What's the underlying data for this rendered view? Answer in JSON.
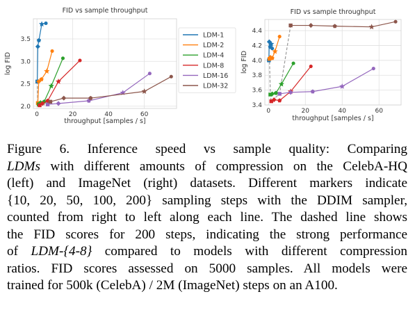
{
  "chart_data": [
    {
      "type": "line",
      "title": "FID vs sample throughput",
      "xlabel": "throughput [samples / s]",
      "ylabel": "log FID",
      "xlim": [
        -2,
        78
      ],
      "ylim": [
        1.95,
        3.95
      ],
      "xticks": [
        0,
        20,
        40,
        60
      ],
      "yticks": [
        2.0,
        2.5,
        3.0,
        3.5
      ],
      "ytick_labels": [
        "2.0",
        "2.5",
        "3.0",
        "3.5"
      ],
      "grid": true,
      "legend": "right",
      "series": [
        {
          "name": "LDM-1",
          "color": "#1f77b4",
          "x": [
            0.2,
            0.5,
            1.1,
            2.7,
            5.0
          ],
          "y": [
            2.55,
            3.33,
            3.47,
            3.83,
            3.85
          ]
        },
        {
          "name": "LDM-2",
          "color": "#ff7f0e",
          "x": [
            0.5,
            1.0,
            2.5,
            5.5,
            8.5
          ],
          "y": [
            2.07,
            2.55,
            2.6,
            2.78,
            3.23
          ]
        },
        {
          "name": "LDM-4",
          "color": "#2ca02c",
          "x": [
            1.0,
            2.0,
            4.0,
            8.0,
            14.5
          ],
          "y": [
            2.04,
            2.08,
            2.1,
            2.45,
            3.07
          ]
        },
        {
          "name": "LDM-8",
          "color": "#d62728",
          "x": [
            1.5,
            3.0,
            6.0,
            12.0,
            24.0
          ],
          "y": [
            2.02,
            2.06,
            2.12,
            2.55,
            3.02
          ]
        },
        {
          "name": "LDM-16",
          "color": "#9467bd",
          "x": [
            6.0,
            12.0,
            29.0,
            48.0,
            63.0
          ],
          "y": [
            2.04,
            2.06,
            2.12,
            2.3,
            2.73
          ]
        },
        {
          "name": "LDM-32",
          "color": "#8c564b",
          "x": [
            7.5,
            15.0,
            30.0,
            60.0,
            75.0
          ],
          "y": [
            2.1,
            2.18,
            2.18,
            2.33,
            2.66
          ]
        }
      ],
      "dashed_line": {
        "x": [
          0.2,
          0.5,
          1.0,
          1.5,
          6.0,
          7.5
        ],
        "y": [
          2.55,
          2.07,
          2.04,
          2.02,
          2.04,
          2.1
        ]
      }
    },
    {
      "type": "line",
      "title": "FID vs sample throughput",
      "xlabel": "throughput [samples / s]",
      "ylabel": "log FID",
      "xlim": [
        -2,
        72
      ],
      "ylim": [
        3.4,
        4.55
      ],
      "xticks": [
        0,
        20,
        40,
        60
      ],
      "yticks": [
        3.4,
        3.6,
        3.8,
        4.0,
        4.2,
        4.4
      ],
      "ytick_labels": [
        "3.4",
        "3.6",
        "3.8",
        "4.0",
        "4.2",
        "4.4"
      ],
      "grid": true,
      "series": [
        {
          "name": "LDM-1",
          "color": "#1f77b4",
          "x": [
            0.2,
            0.4,
            0.9,
            1.5,
            2.0
          ],
          "y": [
            4.0,
            4.25,
            4.18,
            4.22,
            4.16
          ]
        },
        {
          "name": "LDM-2",
          "color": "#ff7f0e",
          "x": [
            0.5,
            1.0,
            2.0,
            3.5,
            6.0
          ],
          "y": [
            4.02,
            4.04,
            4.03,
            4.12,
            4.32
          ]
        },
        {
          "name": "LDM-4",
          "color": "#2ca02c",
          "x": [
            1.0,
            2.0,
            4.0,
            7.0,
            13.5
          ],
          "y": [
            3.54,
            3.55,
            3.56,
            3.68,
            3.96
          ]
        },
        {
          "name": "LDM-8",
          "color": "#d62728",
          "x": [
            1.5,
            3.0,
            6.0,
            12.0,
            23.0
          ],
          "y": [
            3.45,
            3.47,
            3.46,
            3.58,
            3.92
          ]
        },
        {
          "name": "LDM-16",
          "color": "#9467bd",
          "x": [
            6.0,
            12.0,
            24.0,
            40.0,
            57.0
          ],
          "y": [
            3.55,
            3.57,
            3.58,
            3.65,
            3.89
          ]
        },
        {
          "name": "LDM-32",
          "color": "#8c564b",
          "x": [
            12.0,
            23.0,
            36.0,
            56.0,
            69.0
          ],
          "y": [
            4.47,
            4.47,
            4.46,
            4.45,
            4.52
          ]
        }
      ],
      "dashed_line": {
        "x": [
          0.2,
          0.5,
          1.0,
          1.5,
          6.0,
          12.0
        ],
        "y": [
          4.0,
          4.02,
          3.54,
          3.45,
          3.55,
          4.47
        ]
      }
    }
  ],
  "caption": {
    "lines": [
      [
        {
          "t": "Figure 6.    Inference speed vs sample quality: Comparing",
          "i": false
        }
      ],
      [
        {
          "t": "LDMs",
          "i": true
        },
        {
          "t": " with different amounts of compression on the CelebA-HQ",
          "i": false
        }
      ],
      [
        {
          "t": "(left) and ImageNet (right) datasets.  Different markers indicate",
          "i": false
        }
      ],
      [
        {
          "t": "{10, 20, 50, 100, 200} sampling steps with the DDIM sampler,",
          "i": false
        }
      ],
      [
        {
          "t": "counted from right to left along each line. The dashed line shows",
          "i": false
        }
      ],
      [
        {
          "t": "the FID scores for 200 steps, indicating the strong performance",
          "i": false
        }
      ],
      [
        {
          "t": "of ",
          "i": false
        },
        {
          "t": "LDM-{4-8}",
          "i": true
        },
        {
          "t": " compared to models with different compression",
          "i": false
        }
      ],
      [
        {
          "t": "ratios.  FID scores assessed on 5000 samples.  All models were",
          "i": false
        }
      ],
      [
        {
          "t": "trained for 500k (CelebA) / 2M (ImageNet) steps on an A100.",
          "i": false
        }
      ]
    ]
  }
}
